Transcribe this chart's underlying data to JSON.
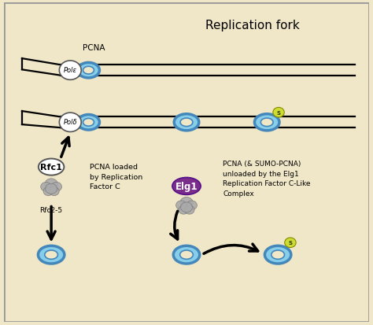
{
  "background_color": "#f0e6c8",
  "border_color": "#999999",
  "title": "Replication fork",
  "title_fontsize": 11,
  "pcna_ring_color": "#87ceeb",
  "pcna_ring_edge": "#4488bb",
  "pcna_label": "PCNA",
  "sumo_color": "#ccdd33",
  "sumo_text": "S",
  "elg1_color": "#7b2d8b",
  "elg1_text": "Elg1",
  "rfc1_text": "Rfc1",
  "rfc25_text": "Rfc2-5",
  "gray_color": "#aaaaaa",
  "gray_edge": "#777777",
  "pole_text": "Polε",
  "pold_text": "Polδ",
  "label1": "PCNA loaded\nby Replication\nFactor C",
  "label2": "PCNA (& SUMO-PCNA)\nunloaded by the Elg1\nReplication Factor C-Like\nComplex",
  "xlim": [
    0,
    10
  ],
  "ylim": [
    0,
    10
  ]
}
